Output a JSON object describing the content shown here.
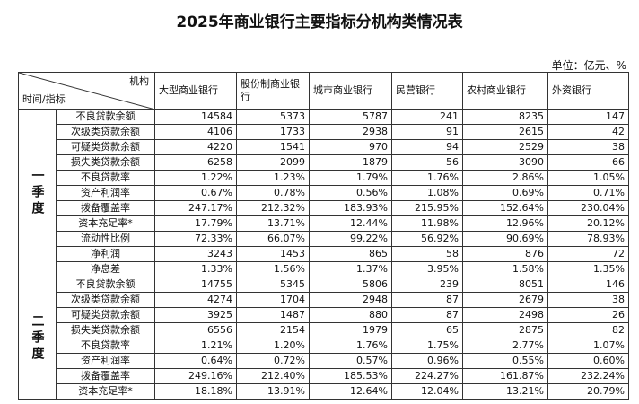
{
  "header": {
    "title": "2025年商业银行主要指标分机构类情况表",
    "unit": "单位：亿元、%"
  },
  "table": {
    "corner": {
      "top": "机构",
      "bottom": "时间/指标"
    },
    "columns": [
      "大型商业银行",
      "股份制商业银行",
      "城市商业银行",
      "民营银行",
      "农村商业银行",
      "外资银行"
    ],
    "groups": [
      {
        "period": "一季度",
        "rows": [
          {
            "label": "不良贷款余额",
            "cells": [
              "14584",
              "5373",
              "5787",
              "241",
              "8235",
              "147"
            ]
          },
          {
            "label": "次级类贷款余额",
            "cells": [
              "4106",
              "1733",
              "2938",
              "91",
              "2615",
              "42"
            ]
          },
          {
            "label": "可疑类贷款余额",
            "cells": [
              "4220",
              "1541",
              "970",
              "94",
              "2529",
              "38"
            ]
          },
          {
            "label": "损失类贷款余额",
            "cells": [
              "6258",
              "2099",
              "1879",
              "56",
              "3090",
              "66"
            ]
          },
          {
            "label": "不良贷款率",
            "cells": [
              "1.22%",
              "1.23%",
              "1.79%",
              "1.76%",
              "2.86%",
              "1.05%"
            ]
          },
          {
            "label": "资产利润率",
            "cells": [
              "0.67%",
              "0.78%",
              "0.56%",
              "1.08%",
              "0.69%",
              "0.71%"
            ]
          },
          {
            "label": "拨备覆盖率",
            "cells": [
              "247.17%",
              "212.32%",
              "183.93%",
              "215.95%",
              "152.64%",
              "230.04%"
            ]
          },
          {
            "label": "资本充足率*",
            "cells": [
              "17.79%",
              "13.71%",
              "12.44%",
              "11.98%",
              "12.96%",
              "20.12%"
            ]
          },
          {
            "label": "流动性比例",
            "cells": [
              "72.33%",
              "66.07%",
              "99.22%",
              "56.92%",
              "90.69%",
              "78.93%"
            ]
          },
          {
            "label": "净利润",
            "cells": [
              "3243",
              "1453",
              "865",
              "58",
              "876",
              "72"
            ]
          },
          {
            "label": "净息差",
            "cells": [
              "1.33%",
              "1.56%",
              "1.37%",
              "3.95%",
              "1.58%",
              "1.35%"
            ]
          }
        ]
      },
      {
        "period": "二季度",
        "rows": [
          {
            "label": "不良贷款余额",
            "cells": [
              "14755",
              "5345",
              "5806",
              "239",
              "8051",
              "146"
            ]
          },
          {
            "label": "次级类贷款余额",
            "cells": [
              "4274",
              "1704",
              "2948",
              "87",
              "2679",
              "38"
            ]
          },
          {
            "label": "可疑类贷款余额",
            "cells": [
              "3925",
              "1487",
              "880",
              "87",
              "2498",
              "26"
            ]
          },
          {
            "label": "损失类贷款余额",
            "cells": [
              "6556",
              "2154",
              "1979",
              "65",
              "2875",
              "82"
            ]
          },
          {
            "label": "不良贷款率",
            "cells": [
              "1.21%",
              "1.20%",
              "1.76%",
              "1.75%",
              "2.77%",
              "1.07%"
            ]
          },
          {
            "label": "资产利润率",
            "cells": [
              "0.64%",
              "0.72%",
              "0.57%",
              "0.96%",
              "0.55%",
              "0.60%"
            ]
          },
          {
            "label": "拨备覆盖率",
            "cells": [
              "249.16%",
              "212.40%",
              "185.53%",
              "224.27%",
              "161.87%",
              "232.24%"
            ]
          },
          {
            "label": "资本充足率*",
            "cells": [
              "18.18%",
              "13.91%",
              "12.64%",
              "12.04%",
              "13.21%",
              "20.79%"
            ]
          }
        ]
      }
    ]
  }
}
